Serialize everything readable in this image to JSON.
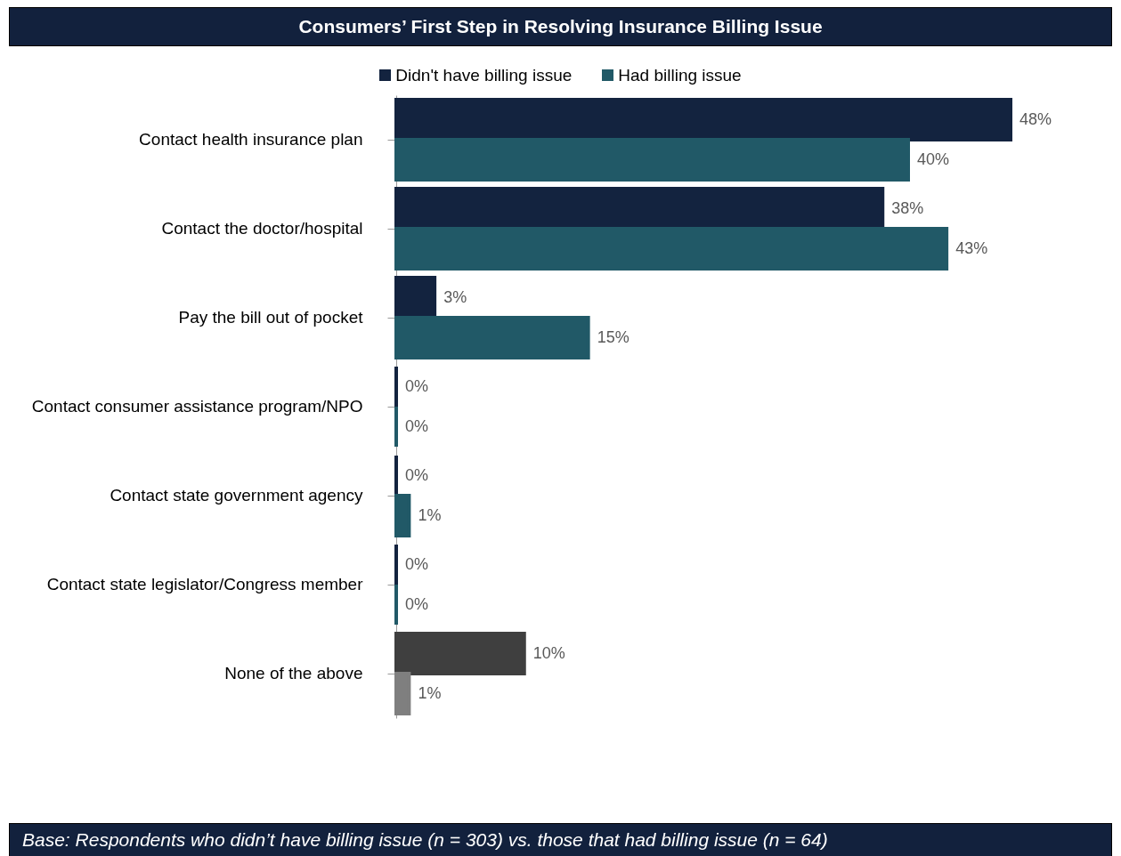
{
  "chart_data": {
    "type": "bar",
    "orientation": "horizontal",
    "title": "Consumers’ First Step in Resolving Insurance Billing Issue",
    "categories": [
      "Contact health insurance plan",
      "Contact the doctor/hospital",
      "Pay the bill out of pocket",
      "Contact consumer assistance program/NPO",
      "Contact state government agency",
      "Contact state legislator/Congress member",
      "None of the above"
    ],
    "series": [
      {
        "name": "Didn't have billing issue",
        "color": "#13233f",
        "colors": [
          "#13233f",
          "#13233f",
          "#13233f",
          "#13233f",
          "#13233f",
          "#13233f",
          "#3f3f3f"
        ],
        "values": [
          48,
          38,
          3,
          0,
          0,
          0,
          10
        ],
        "value_labels": [
          "48%",
          "38%",
          "3%",
          "0%",
          "0%",
          "0%",
          "10%"
        ]
      },
      {
        "name": "Had billing issue",
        "color": "#215967",
        "colors": [
          "#215967",
          "#215967",
          "#215967",
          "#215967",
          "#215967",
          "#215967",
          "#7f7f7f"
        ],
        "values": [
          40,
          43,
          15,
          0,
          1,
          0,
          1
        ],
        "value_labels": [
          "40%",
          "43%",
          "15%",
          "0%",
          "1%",
          "0%",
          "1%"
        ]
      }
    ],
    "legend": "top",
    "grid": false,
    "annotations": [
      "Base: Respondents who didn’t have billing issue (n = 303) vs. those that had billing issue (n = 64)"
    ]
  }
}
